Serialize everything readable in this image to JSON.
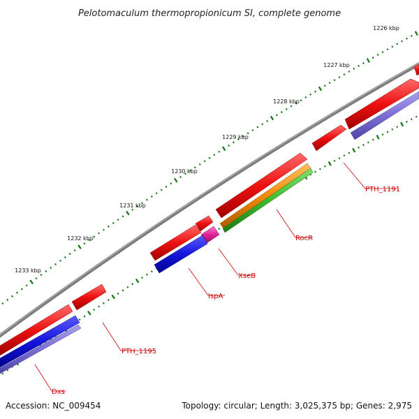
{
  "title": "Pelotomaculum thermopropionicum SI, complete genome",
  "ticks": [
    "1226 kbp",
    "1227 kbp",
    "1228 kbp",
    "1229 kbp",
    "1230 kbp",
    "1231 kbp",
    "1232 kbp",
    "1233 kbp"
  ],
  "genes": {
    "pth1191": "PTH_1191",
    "rocr": "RocR",
    "xseb": "XseB",
    "ispa": "IspA",
    "pth1195": "PTH_1195",
    "dxs": "Dxs"
  },
  "footer": {
    "accession": "Accession: NC_009454",
    "topology": "Topology: circular; Length: 3,025,375 bp; Genes: 2,975"
  },
  "colors": {
    "backbone": "#808080",
    "gene_red": "#ee1111",
    "gene_blue": "#1515dd",
    "gene_lavender": "#7b6fd6",
    "gene_orange": "#f08a0a",
    "gene_green": "#3dbb2e",
    "gene_magenta": "#e0239a",
    "label_red": "#cc0000",
    "tick_green": "#1a7a1a"
  }
}
